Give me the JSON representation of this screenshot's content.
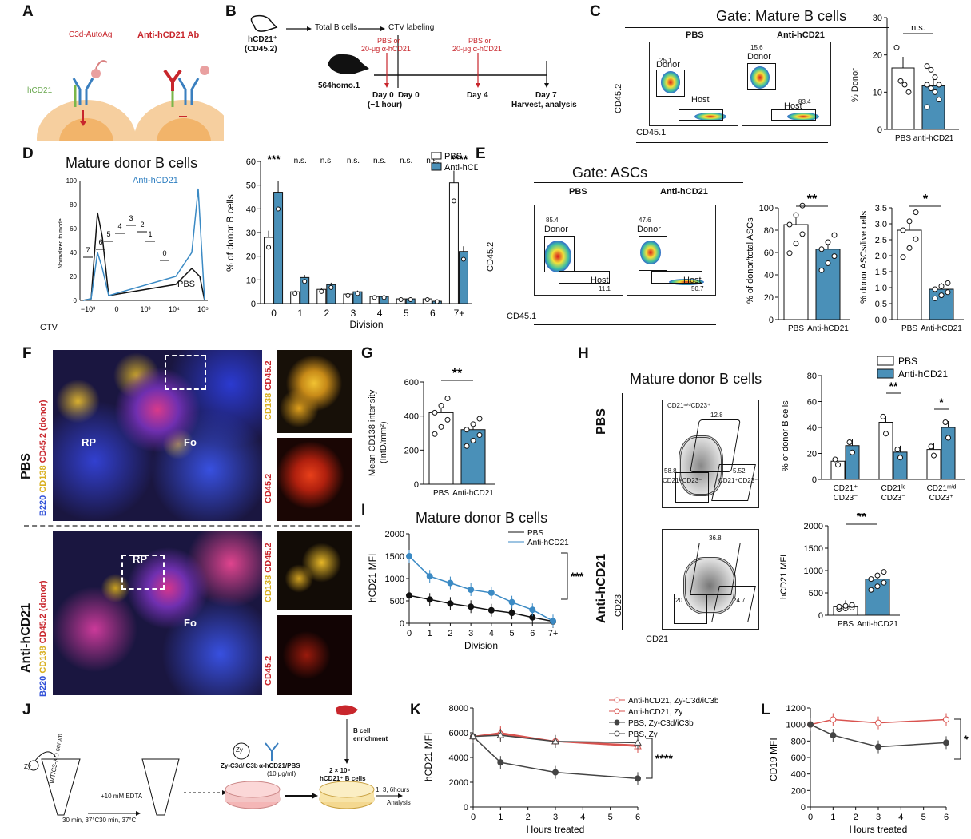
{
  "panels": {
    "A": "A",
    "B": "B",
    "C": "C",
    "D": "D",
    "E": "E",
    "F": "F",
    "G": "G",
    "H": "H",
    "I": "I",
    "J": "J",
    "K": "K",
    "L": "L"
  },
  "colors": {
    "pbs": "#ffffff",
    "anti": "#4a90b8",
    "red": "#c8262c",
    "blue_line": "#3b8ac4"
  },
  "A": {
    "c3d_label": "C3d-AutoAg",
    "ab_label": "Anti-hCD21 Ab",
    "hcd21_label": "hCD21"
  },
  "B": {
    "donor_mouse": "hCD21⁺",
    "donor_strain": "(CD45.2)",
    "step1": "Total B cells",
    "step2": "CTV labeling",
    "recipient": "564homo.1",
    "inj1": "PBS or",
    "inj1b": "20-μg α-hCD21",
    "inj2": "PBS or",
    "inj2b": "20-μg α-hCD21",
    "day0a": "Day 0",
    "day0a_sub": "(−1 hour)",
    "day0b": "Day 0",
    "day4": "Day 4",
    "day7": "Day 7",
    "harvest": "Harvest, analysis"
  },
  "C": {
    "gate_title": "Gate: Mature B cells",
    "pbs": "PBS",
    "anti": "Anti-hCD21",
    "donor": "Donor",
    "host": "Host",
    "pbs_donor_pct": "25.1",
    "anti_donor_pct": "15.6",
    "pbs_host_pct": "72.3",
    "anti_host_pct": "83.4",
    "yaxis": "CD45.2",
    "xaxis": "CD45.1",
    "ticks_y": [
      "10⁵",
      "10⁴",
      "10³",
      "0",
      "−10³"
    ],
    "ticks_x": [
      "0",
      "10⁴"
    ],
    "bar_ylabel": "% Donor",
    "ns": "n.s.",
    "bar_cats": [
      "PBS",
      "anti-hCD21"
    ],
    "bar_yticks": [
      "0",
      "10",
      "20",
      "30"
    ]
  },
  "D": {
    "title": "Mature donor B cells",
    "anti_label": "Anti-hCD21",
    "pbs_label": "PBS",
    "ylab": "Normalized to mode",
    "xlab": "CTV",
    "yticks": [
      "0",
      "20",
      "40",
      "60",
      "80",
      "100"
    ],
    "xticks": [
      "−10³",
      "0",
      "10³",
      "10⁴",
      "10⁵"
    ],
    "div_labels": [
      "7",
      "6",
      "5",
      "4",
      "3",
      "2",
      "1",
      "0"
    ],
    "bar_ylabel": "% of donor B cells",
    "bar_xlabel": "Division",
    "bar_cats": [
      "0",
      "1",
      "2",
      "3",
      "4",
      "5",
      "6",
      "7+"
    ],
    "bar_yticks": [
      "0",
      "10",
      "20",
      "30",
      "40",
      "50",
      "60"
    ],
    "legend_pbs": "PBS",
    "legend_anti": "Anti-hCD21",
    "sig": [
      "***",
      "n.s.",
      "n.s.",
      "n.s.",
      "n.s.",
      "n.s.",
      "n.s.",
      "****"
    ]
  },
  "E": {
    "gate_title": "Gate: ASCs",
    "pbs": "PBS",
    "anti": "Anti-hCD21",
    "donor": "Donor",
    "host": "Host",
    "pbs_donor_pct": "85.4",
    "anti_donor_pct": "47.6",
    "pbs_host_pct": "11.1",
    "anti_host_pct": "50.7",
    "yaxis": "CD45.2",
    "xaxis": "CD45.1",
    "ticks_y": [
      "10⁵",
      "10⁴",
      "10³",
      "0",
      "−10³"
    ],
    "ticks_x": [
      "0",
      "10⁴"
    ],
    "bar1_ylabel": "% of donor/total ASCs",
    "bar1_sig": "**",
    "bar1_yticks": [
      "0",
      "20",
      "40",
      "60",
      "80",
      "100"
    ],
    "bar2_ylabel": "% donor ASCs/live cells",
    "bar2_sig": "*",
    "bar2_yticks": [
      "0.0",
      "0.5",
      "1.0",
      "1.5",
      "2.0",
      "2.5",
      "3.0",
      "3.5"
    ],
    "cats": [
      "PBS",
      "Anti-hCD21"
    ]
  },
  "F": {
    "pbs_row": "PBS",
    "anti_row": "Anti-hCD21",
    "stain_b220": "B220",
    "stain_cd138": "CD138",
    "stain_cd452": "CD45.2 (donor)",
    "rp": "RP",
    "fo": "Fo",
    "side_cd138": "CD138",
    "side_cd452": "CD45.2"
  },
  "G": {
    "ylabel": "Mean CD138 intensity",
    "ylabel2": "(IntD/mm²)",
    "sig": "**",
    "yticks": [
      "0",
      "200",
      "400",
      "600"
    ],
    "cats": [
      "PBS",
      "Anti-hCD21"
    ]
  },
  "H": {
    "title": "Mature donor B cells",
    "row_pbs": "PBS",
    "row_anti": "Anti-hCD21",
    "xaxis": "CD21",
    "yaxis": "CD23",
    "gate_top": "CD21ᵐⁱᵈCD23⁺",
    "gate_left": "CD21ˡᵒCD23⁻",
    "gate_right": "CD21⁺CD23⁻",
    "pbs_top": "12.8",
    "pbs_left": "58.8",
    "pbs_right": "5.52",
    "anti_top": "36.8",
    "anti_left": "20.1",
    "anti_right": "24.7",
    "ticks_y": [
      "10⁵",
      "10⁴",
      "10³",
      "0",
      "−10³"
    ],
    "ticks_x": [
      "0",
      "10⁴"
    ],
    "legend_pbs": "PBS",
    "legend_anti": "Anti-hCD21",
    "bar_ylabel": "% of donor B cells",
    "bar_yticks": [
      "0",
      "20",
      "40",
      "60",
      "80"
    ],
    "bar_cats": [
      "CD21⁺ CD23⁻",
      "CD21ˡᵒ CD23⁻",
      "CD21ᵐⁱᵈ CD23⁺"
    ],
    "sig2": "**",
    "sig3": "*",
    "mfi_ylabel": "hCD21 MFI",
    "mfi_sig": "**",
    "mfi_yticks": [
      "0",
      "500",
      "1000",
      "1500",
      "2000"
    ],
    "mfi_cats": [
      "PBS",
      "Anti-hCD21"
    ]
  },
  "I": {
    "title": "Mature donor B cells",
    "legend_pbs": "PBS",
    "legend_anti": "Anti-hCD21",
    "ylabel": "hCD21 MFI",
    "xlabel": "Division",
    "yticks": [
      "0",
      "500",
      "1000",
      "1500",
      "2000"
    ],
    "sig": "***"
  },
  "J": {
    "step1": "30 min, 37°C",
    "step2": "+10 mM EDTA",
    "step2b": "30 min, 37°C",
    "zy": "Zy",
    "zy_label": "Zy-C3d/iC3b",
    "ab_label": "α-hCD21/PBS",
    "ab_conc": "(10 μg/ml)",
    "enrich1": "B cell",
    "enrich2": "enrichment",
    "cells1": "2 × 10⁵",
    "cells2": "hCD21⁺ B cells",
    "times": "1, 3, 6hours",
    "analysis": "Analysis",
    "tube_label": "WT/C3-KO serum"
  },
  "K": {
    "ylabel": "hCD21 MFI",
    "xlabel": "Hours treated",
    "yticks": [
      "0",
      "2000",
      "4000",
      "6000",
      "8000"
    ],
    "xticks": [
      "0",
      "1",
      "2",
      "3",
      "4",
      "5",
      "6"
    ],
    "sig": "****",
    "legend": [
      "Anti-hCD21, Zy-C3d/iC3b",
      "Anti-hCD21, Zy",
      "PBS, Zy-C3d/iC3b",
      "PBS, Zy"
    ]
  },
  "L": {
    "ylabel": "CD19 MFI",
    "xlabel": "Hours treated",
    "yticks": [
      "0",
      "200",
      "400",
      "600",
      "800",
      "1000",
      "1200"
    ],
    "xticks": [
      "0",
      "1",
      "2",
      "3",
      "4",
      "5",
      "6"
    ],
    "sig": "****"
  },
  "chart_data": [
    {
      "id": "C_bar",
      "type": "bar",
      "categories": [
        "PBS",
        "anti-hCD21"
      ],
      "values": [
        16.5,
        11.7
      ],
      "ylabel": "% Donor",
      "ylim": [
        0,
        30
      ],
      "points": [
        [
          22,
          13,
          12,
          10
        ],
        [
          17,
          16,
          14,
          12,
          12,
          11,
          10,
          8,
          6
        ]
      ]
    },
    {
      "id": "D_bar",
      "type": "bar",
      "categories": [
        "0",
        "1",
        "2",
        "3",
        "4",
        "5",
        "6",
        "7+"
      ],
      "xlabel": "Division",
      "ylabel": "% of donor B cells",
      "ylim": [
        0,
        60
      ],
      "series": [
        {
          "name": "PBS",
          "values": [
            28,
            5,
            6,
            4,
            3,
            2,
            2,
            51
          ]
        },
        {
          "name": "Anti-hCD21",
          "values": [
            47,
            11,
            8,
            5,
            3,
            2,
            1,
            22
          ]
        }
      ]
    },
    {
      "id": "E_bar1",
      "type": "bar",
      "categories": [
        "PBS",
        "Anti-hCD21"
      ],
      "values": [
        85,
        63
      ],
      "ylabel": "% of donor/total ASCs",
      "ylim": [
        0,
        100
      ]
    },
    {
      "id": "E_bar2",
      "type": "bar",
      "categories": [
        "PBS",
        "Anti-hCD21"
      ],
      "values": [
        2.8,
        0.95
      ],
      "ylabel": "% donor ASCs/live cells",
      "ylim": [
        0,
        3.5
      ]
    },
    {
      "id": "G_bar",
      "type": "bar",
      "categories": [
        "PBS",
        "Anti-hCD21"
      ],
      "values": [
        420,
        320
      ],
      "ylabel": "Mean CD138 intensity (IntD/mm²)",
      "ylim": [
        0,
        600
      ]
    },
    {
      "id": "H_bar",
      "type": "bar",
      "categories": [
        "CD21⁺ CD23⁻",
        "CD21ˡᵒ CD23⁻",
        "CD21ᵐⁱᵈ CD23⁺"
      ],
      "ylabel": "% of donor B cells",
      "ylim": [
        0,
        80
      ],
      "series": [
        {
          "name": "PBS",
          "values": [
            14,
            44,
            23
          ]
        },
        {
          "name": "Anti-hCD21",
          "values": [
            26,
            21,
            40
          ]
        }
      ]
    },
    {
      "id": "H_mfi",
      "type": "bar",
      "categories": [
        "PBS",
        "Anti-hCD21"
      ],
      "values": [
        190,
        810
      ],
      "ylabel": "hCD21 MFI",
      "ylim": [
        0,
        2000
      ]
    },
    {
      "id": "I_line",
      "type": "line",
      "x": [
        "0",
        "1",
        "2",
        "3",
        "4",
        "5",
        "6",
        "7+"
      ],
      "ylabel": "hCD21 MFI",
      "xlabel": "Division",
      "ylim": [
        0,
        2000
      ],
      "series": [
        {
          "name": "PBS",
          "values": [
            620,
            530,
            440,
            370,
            290,
            230,
            130,
            40
          ]
        },
        {
          "name": "Anti-hCD21",
          "values": [
            1500,
            1050,
            900,
            750,
            680,
            470,
            300,
            50
          ]
        }
      ]
    },
    {
      "id": "K_line",
      "type": "line",
      "x": [
        0,
        1,
        3,
        6
      ],
      "ylabel": "hCD21 MFI",
      "xlabel": "Hours treated",
      "ylim": [
        0,
        8000
      ],
      "series": [
        {
          "name": "Anti-hCD21, Zy-C3d/iC3b",
          "values": [
            5700,
            5900,
            5300,
            5000
          ]
        },
        {
          "name": "Anti-hCD21, Zy",
          "values": [
            5700,
            6000,
            5300,
            4900
          ]
        },
        {
          "name": "PBS, Zy-C3d/iC3b",
          "values": [
            5700,
            3600,
            2800,
            2300
          ]
        },
        {
          "name": "PBS, Zy",
          "values": [
            5700,
            5800,
            5300,
            5200
          ]
        }
      ]
    },
    {
      "id": "L_line",
      "type": "line",
      "x": [
        0,
        1,
        3,
        6
      ],
      "ylabel": "CD19 MFI",
      "xlabel": "Hours treated",
      "ylim": [
        0,
        1200
      ],
      "series": [
        {
          "name": "Anti-hCD21",
          "values": [
            1000,
            1060,
            1020,
            1060
          ]
        },
        {
          "name": "PBS",
          "values": [
            1000,
            870,
            730,
            780
          ]
        }
      ]
    }
  ]
}
